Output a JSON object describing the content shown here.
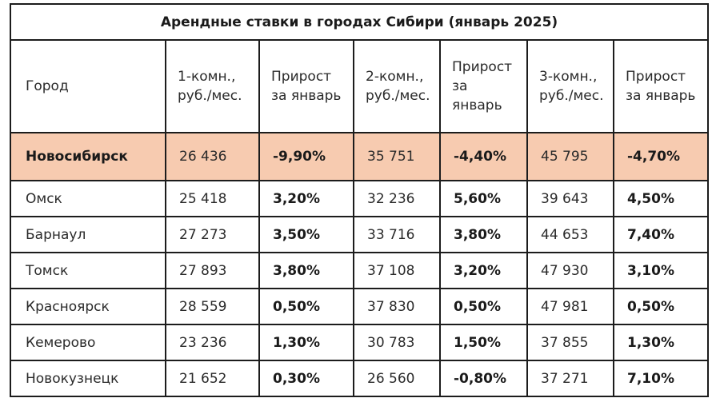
{
  "table": {
    "title": "Арендные ставки в городах Сибири (январь 2025)",
    "headers": [
      "Город",
      "1-комн., руб./мес.",
      "Прирост за январь",
      "2-комн., руб./мес.",
      "Прирост за январь",
      "3-комн., руб./мес.",
      "Прирост за январь"
    ],
    "highlight_color": "#f7cbb0",
    "rows": [
      {
        "city": "Новосибирск",
        "r1": "26 436",
        "g1": "-9,90%",
        "r2": "35 751",
        "g2": "-4,40%",
        "r3": "45 795",
        "g3": "-4,70%",
        "highlighted": true
      },
      {
        "city": "Омск",
        "r1": "25 418",
        "g1": "3,20%",
        "r2": "32 236",
        "g2": "5,60%",
        "r3": "39 643",
        "g3": "4,50%"
      },
      {
        "city": "Барнаул",
        "r1": "27 273",
        "g1": "3,50%",
        "r2": "33 716",
        "g2": "3,80%",
        "r3": "44 653",
        "g3": "7,40%"
      },
      {
        "city": "Томск",
        "r1": "27 893",
        "g1": "3,80%",
        "r2": "37 108",
        "g2": "3,20%",
        "r3": "47 930",
        "g3": "3,10%"
      },
      {
        "city": "Красноярск",
        "r1": "28 559",
        "g1": "0,50%",
        "r2": "37 830",
        "g2": "0,50%",
        "r3": "47 981",
        "g3": "0,50%"
      },
      {
        "city": "Кемерово",
        "r1": "23 236",
        "g1": "1,30%",
        "r2": "30 783",
        "g2": "1,50%",
        "r3": "37 855",
        "g3": "1,30%"
      },
      {
        "city": "Новокузнецк",
        "r1": "21 652",
        "g1": "0,30%",
        "r2": "26 560",
        "g2": "-0,80%",
        "r3": "37 271",
        "g3": "7,10%"
      }
    ]
  }
}
